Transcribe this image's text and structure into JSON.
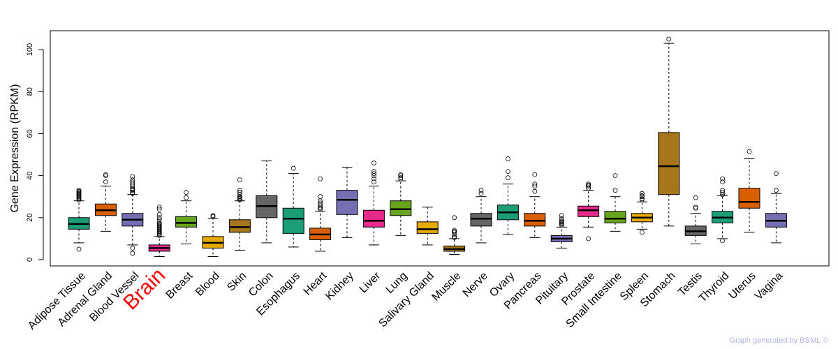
{
  "chart_data": {
    "type": "boxplot",
    "title": "",
    "ylabel": "Gene Expression (RPKM)",
    "xlabel": "",
    "ylim": [
      -3,
      109
    ],
    "yticks": [
      0,
      20,
      40,
      60,
      80,
      100
    ],
    "highlight": "Brain",
    "highlight_color": "#ff0000",
    "categories": [
      {
        "name": "Adipose Tissue",
        "color": "#1b9e77",
        "whisker_low": 8,
        "q1": 14.5,
        "median": 17,
        "q3": 20,
        "whisker_high": 28,
        "outliers": [
          5,
          28.5,
          29,
          29.5,
          30,
          30.5,
          31,
          31.5,
          32,
          32.5,
          33
        ]
      },
      {
        "name": "Adrenal Gland",
        "color": "#d95f02",
        "whisker_low": 13.5,
        "q1": 21,
        "median": 23.5,
        "q3": 26.5,
        "whisker_high": 35,
        "outliers": [
          37,
          40,
          40.5
        ]
      },
      {
        "name": "Blood Vessel",
        "color": "#7570b3",
        "whisker_low": 7,
        "q1": 16,
        "median": 19,
        "q3": 22,
        "whisker_high": 31,
        "outliers": [
          3,
          5.5,
          31.5,
          32,
          33,
          33.5,
          34,
          35,
          36,
          37,
          38,
          39.5
        ]
      },
      {
        "name": "Brain",
        "color": "#e7298a",
        "whisker_low": 1.5,
        "q1": 4,
        "median": 5.5,
        "q3": 7,
        "whisker_high": 11,
        "outliers": [
          11.5,
          12,
          12.5,
          13,
          13.5,
          14,
          14.5,
          15,
          15.5,
          16,
          16.5,
          17,
          17.5,
          19,
          20,
          21.5,
          24,
          25
        ]
      },
      {
        "name": "Breast",
        "color": "#66a61e",
        "whisker_low": 7.5,
        "q1": 15.5,
        "median": 17.5,
        "q3": 20.5,
        "whisker_high": 28,
        "outliers": [
          29.5,
          32
        ]
      },
      {
        "name": "Blood",
        "color": "#e6ab02",
        "whisker_low": 1.5,
        "q1": 5.5,
        "median": 8,
        "q3": 11,
        "whisker_high": 19.5,
        "outliers": [
          20.5,
          21
        ]
      },
      {
        "name": "Skin",
        "color": "#a6761d",
        "whisker_low": 4.5,
        "q1": 13,
        "median": 15.5,
        "q3": 19,
        "whisker_high": 28,
        "outliers": [
          28.5,
          29,
          29.5,
          30,
          31,
          32,
          33,
          38
        ]
      },
      {
        "name": "Colon",
        "color": "#666666",
        "whisker_low": 8,
        "q1": 20,
        "median": 25.5,
        "q3": 30.5,
        "whisker_high": 47,
        "outliers": []
      },
      {
        "name": "Esophagus",
        "color": "#1b9e77",
        "whisker_low": 6,
        "q1": 12.5,
        "median": 19.5,
        "q3": 24.5,
        "whisker_high": 41,
        "outliers": [
          43.5
        ]
      },
      {
        "name": "Heart",
        "color": "#d95f02",
        "whisker_low": 4,
        "q1": 9.5,
        "median": 12,
        "q3": 15,
        "whisker_high": 23,
        "outliers": [
          24,
          24.5,
          25,
          26,
          27,
          28,
          30,
          38.5
        ]
      },
      {
        "name": "Kidney",
        "color": "#7570b3",
        "whisker_low": 10.5,
        "q1": 21.5,
        "median": 28.5,
        "q3": 33,
        "whisker_high": 44,
        "outliers": []
      },
      {
        "name": "Liver",
        "color": "#e7298a",
        "whisker_low": 7,
        "q1": 15.5,
        "median": 18.5,
        "q3": 23.5,
        "whisker_high": 35,
        "outliers": [
          37,
          38.5,
          40,
          41,
          42,
          46
        ]
      },
      {
        "name": "Lung",
        "color": "#66a61e",
        "whisker_low": 11.5,
        "q1": 21,
        "median": 24,
        "q3": 28,
        "whisker_high": 37.5,
        "outliers": [
          38.5,
          39,
          40,
          40.5
        ]
      },
      {
        "name": "Salivary Gland",
        "color": "#e6ab02",
        "whisker_low": 7,
        "q1": 12.5,
        "median": 14.5,
        "q3": 18,
        "whisker_high": 25,
        "outliers": []
      },
      {
        "name": "Muscle",
        "color": "#a6761d",
        "whisker_low": 2.5,
        "q1": 4,
        "median": 5,
        "q3": 6.5,
        "whisker_high": 10,
        "outliers": [
          10.5,
          11,
          12,
          13,
          13.5,
          14,
          20
        ]
      },
      {
        "name": "Nerve",
        "color": "#666666",
        "whisker_low": 8,
        "q1": 16,
        "median": 19.5,
        "q3": 22,
        "whisker_high": 30,
        "outliers": [
          31.5,
          33
        ]
      },
      {
        "name": "Ovary",
        "color": "#1b9e77",
        "whisker_low": 12,
        "q1": 19,
        "median": 22.5,
        "q3": 26,
        "whisker_high": 36,
        "outliers": [
          39,
          42,
          48
        ]
      },
      {
        "name": "Pancreas",
        "color": "#d95f02",
        "whisker_low": 10.5,
        "q1": 16,
        "median": 18.5,
        "q3": 22,
        "whisker_high": 30,
        "outliers": [
          32.5,
          35,
          36,
          40.5
        ]
      },
      {
        "name": "Pituitary",
        "color": "#7570b3",
        "whisker_low": 5.5,
        "q1": 8.5,
        "median": 10,
        "q3": 11.5,
        "whisker_high": 15.5,
        "outliers": [
          16.5,
          17,
          17.5,
          18,
          18.5,
          19.5,
          21
        ]
      },
      {
        "name": "Prostate",
        "color": "#e7298a",
        "whisker_low": 15.5,
        "q1": 20.5,
        "median": 23.5,
        "q3": 25.5,
        "whisker_high": 33,
        "outliers": [
          10,
          34,
          35,
          35.5,
          36
        ]
      },
      {
        "name": "Small Intestine",
        "color": "#66a61e",
        "whisker_low": 13.5,
        "q1": 17.5,
        "median": 19.5,
        "q3": 23,
        "whisker_high": 30,
        "outliers": [
          33,
          40
        ]
      },
      {
        "name": "Spleen",
        "color": "#e6ab02",
        "whisker_low": 14.5,
        "q1": 18,
        "median": 20,
        "q3": 22,
        "whisker_high": 27.5,
        "outliers": [
          13,
          28.5,
          29,
          30,
          30.5,
          31.5
        ]
      },
      {
        "name": "Stomach",
        "color": "#a6761d",
        "whisker_low": 16,
        "q1": 31,
        "median": 44.5,
        "q3": 60.5,
        "whisker_high": 103,
        "outliers": [
          105
        ]
      },
      {
        "name": "Testis",
        "color": "#666666",
        "whisker_low": 7.5,
        "q1": 11.5,
        "median": 13.5,
        "q3": 16,
        "whisker_high": 22,
        "outliers": [
          24.5,
          25,
          29.5
        ]
      },
      {
        "name": "Thyroid",
        "color": "#1b9e77",
        "whisker_low": 10,
        "q1": 17.5,
        "median": 20,
        "q3": 23,
        "whisker_high": 30.5,
        "outliers": [
          9,
          31,
          32,
          33,
          37,
          38.5
        ]
      },
      {
        "name": "Uterus",
        "color": "#d95f02",
        "whisker_low": 13,
        "q1": 24.5,
        "median": 27.5,
        "q3": 34,
        "whisker_high": 48,
        "outliers": [
          51.5
        ]
      },
      {
        "name": "Vagina",
        "color": "#7570b3",
        "whisker_low": 8,
        "q1": 15.5,
        "median": 18.5,
        "q3": 22,
        "whisker_high": 31.5,
        "outliers": [
          33,
          41
        ]
      }
    ]
  },
  "footer": {
    "credit": "Graph generated by BSML ©"
  }
}
